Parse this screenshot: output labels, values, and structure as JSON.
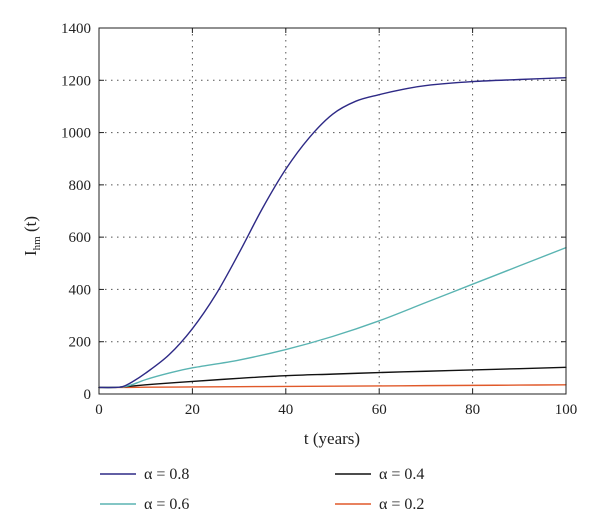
{
  "chart_data": {
    "type": "line",
    "title": "",
    "xlabel": "t (years)",
    "ylabel_main": "I",
    "ylabel_sub": "hm",
    "ylabel_tail": " (t)",
    "xlim": [
      0,
      100
    ],
    "ylim": [
      0,
      1400
    ],
    "xticks": [
      0,
      20,
      40,
      60,
      80,
      100
    ],
    "yticks": [
      0,
      200,
      400,
      600,
      800,
      1000,
      1200,
      1400
    ],
    "grid": true,
    "legend_position": "bottom",
    "series": [
      {
        "name": "α = 0.8",
        "color": "#2e2a86",
        "x": [
          0,
          3,
          5,
          7,
          10,
          15,
          20,
          25,
          30,
          35,
          40,
          45,
          50,
          55,
          60,
          65,
          70,
          80,
          90,
          100
        ],
        "y": [
          25,
          25,
          28,
          45,
          80,
          150,
          250,
          380,
          540,
          710,
          860,
          980,
          1070,
          1120,
          1145,
          1165,
          1180,
          1195,
          1203,
          1210
        ]
      },
      {
        "name": "α = 0.6",
        "color": "#5ab4b2",
        "x": [
          0,
          3,
          5,
          7,
          10,
          15,
          20,
          30,
          40,
          50,
          60,
          70,
          80,
          90,
          100
        ],
        "y": [
          25,
          25,
          27,
          35,
          55,
          80,
          100,
          130,
          170,
          220,
          280,
          350,
          420,
          490,
          560
        ]
      },
      {
        "name": "α = 0.4",
        "color": "#111111",
        "x": [
          0,
          3,
          5,
          10,
          15,
          20,
          30,
          40,
          50,
          60,
          70,
          80,
          90,
          100
        ],
        "y": [
          25,
          25,
          27,
          35,
          42,
          48,
          60,
          70,
          76,
          82,
          87,
          92,
          97,
          102
        ]
      },
      {
        "name": "α = 0.2",
        "color": "#e0592a",
        "x": [
          0,
          5,
          10,
          20,
          30,
          40,
          50,
          60,
          70,
          80,
          90,
          100
        ],
        "y": [
          25,
          25,
          26,
          27,
          28,
          29,
          30,
          31,
          32,
          33,
          34,
          35
        ]
      }
    ]
  }
}
